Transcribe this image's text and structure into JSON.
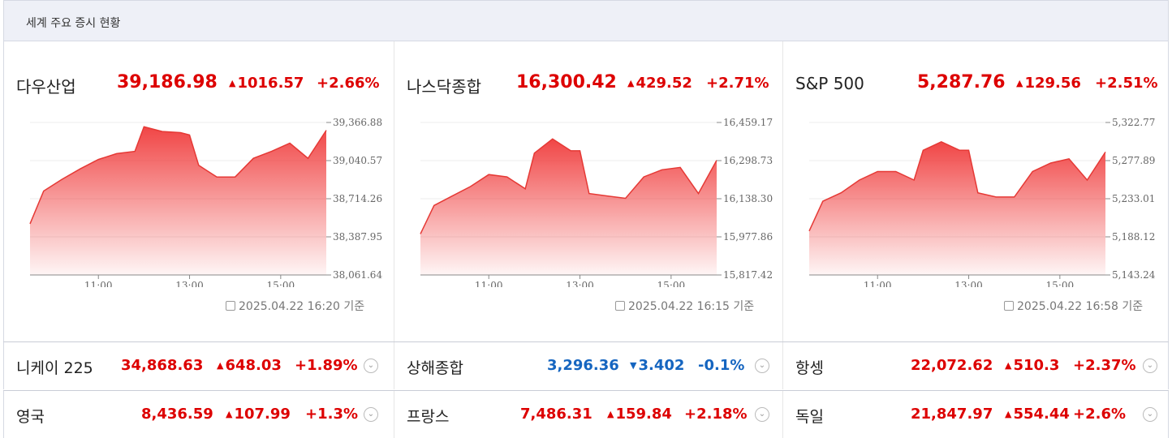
{
  "header": {
    "title": "세계 주요 증시 현황"
  },
  "panels": [
    {
      "name": "다우산업",
      "value": "39,186.98",
      "change": "1016.57",
      "pct": "+2.66%",
      "stamp": "2025.04.22 16:20 기준",
      "yticks": [
        "39,366.88",
        "39,040.57",
        "38,714.26",
        "38,387.95",
        "38,061.64"
      ],
      "xticks": [
        "11:00",
        "13:00",
        "15:00"
      ]
    },
    {
      "name": "나스닥종합",
      "value": "16,300.42",
      "change": "429.52",
      "pct": "+2.71%",
      "stamp": "2025.04.22 16:15 기준",
      "yticks": [
        "16,459.17",
        "16,298.73",
        "16,138.30",
        "15,977.86",
        "15,817.42"
      ],
      "xticks": [
        "11:00",
        "13:00",
        "15:00"
      ]
    },
    {
      "name": "S&P 500",
      "value": "5,287.76",
      "change": "129.56",
      "pct": "+2.51%",
      "stamp": "2025.04.22 16:58 기준",
      "yticks": [
        "5,322.77",
        "5,277.89",
        "5,233.01",
        "5,188.12",
        "5,143.24"
      ],
      "xticks": [
        "11:00",
        "13:00",
        "15:00"
      ]
    }
  ],
  "rows": [
    [
      {
        "name": "니케이 225",
        "value": "34,868.63",
        "dir": "up",
        "change": "648.03",
        "pct": "+1.89%"
      },
      {
        "name": "상해종합",
        "value": "3,296.36",
        "dir": "down",
        "change": "3.402",
        "pct": "-0.1%"
      },
      {
        "name": "항셍",
        "value": "22,072.62",
        "dir": "up",
        "change": "510.3",
        "pct": "+2.37%"
      }
    ],
    [
      {
        "name": "영국",
        "value": "8,436.59",
        "dir": "up",
        "change": "107.99",
        "pct": "+1.3%"
      },
      {
        "name": "프랑스",
        "value": "7,486.31",
        "dir": "up",
        "change": "159.84",
        "pct": "+2.18%"
      },
      {
        "name": "독일",
        "value": "21,847.97",
        "dir": "up",
        "change": "554.44",
        "pct": "+2.6%"
      }
    ]
  ],
  "colors": {
    "up": "#dd0000",
    "down": "#1565c0",
    "chart_line": "#e53935"
  },
  "icons": {
    "stamp": "calendar-icon",
    "toggle": "chevron-down-icon",
    "up": "triangle-up-icon",
    "down": "triangle-down-icon"
  },
  "chart_data": [
    {
      "type": "area",
      "name": "다우산업",
      "ylim": [
        38061.64,
        39366.88
      ],
      "x": [
        9.5,
        9.8,
        10.2,
        10.6,
        11.0,
        11.4,
        11.8,
        12.0,
        12.4,
        12.8,
        13.0,
        13.2,
        13.6,
        14.0,
        14.4,
        14.8,
        15.2,
        15.6,
        16.0
      ],
      "y": [
        38500,
        38780,
        38880,
        38970,
        39050,
        39100,
        39120,
        39330,
        39290,
        39280,
        39260,
        39000,
        38900,
        38900,
        39060,
        39120,
        39190,
        39060,
        39300
      ]
    },
    {
      "type": "area",
      "name": "나스닥종합",
      "ylim": [
        15817.42,
        16459.17
      ],
      "x": [
        9.5,
        9.8,
        10.2,
        10.6,
        11.0,
        11.4,
        11.8,
        12.0,
        12.4,
        12.8,
        13.0,
        13.2,
        13.6,
        14.0,
        14.4,
        14.8,
        15.2,
        15.6,
        16.0
      ],
      "y": [
        15990,
        16110,
        16150,
        16190,
        16240,
        16230,
        16180,
        16330,
        16390,
        16340,
        16340,
        16160,
        16150,
        16140,
        16230,
        16260,
        16270,
        16160,
        16300
      ]
    },
    {
      "type": "area",
      "name": "S&P 500",
      "ylim": [
        5143.24,
        5322.77
      ],
      "x": [
        9.5,
        9.8,
        10.2,
        10.6,
        11.0,
        11.4,
        11.8,
        12.0,
        12.4,
        12.8,
        13.0,
        13.2,
        13.6,
        14.0,
        14.4,
        14.8,
        15.2,
        15.6,
        16.0
      ],
      "y": [
        5195,
        5230,
        5240,
        5255,
        5265,
        5265,
        5255,
        5290,
        5300,
        5290,
        5290,
        5240,
        5235,
        5235,
        5265,
        5275,
        5280,
        5255,
        5288
      ]
    }
  ]
}
